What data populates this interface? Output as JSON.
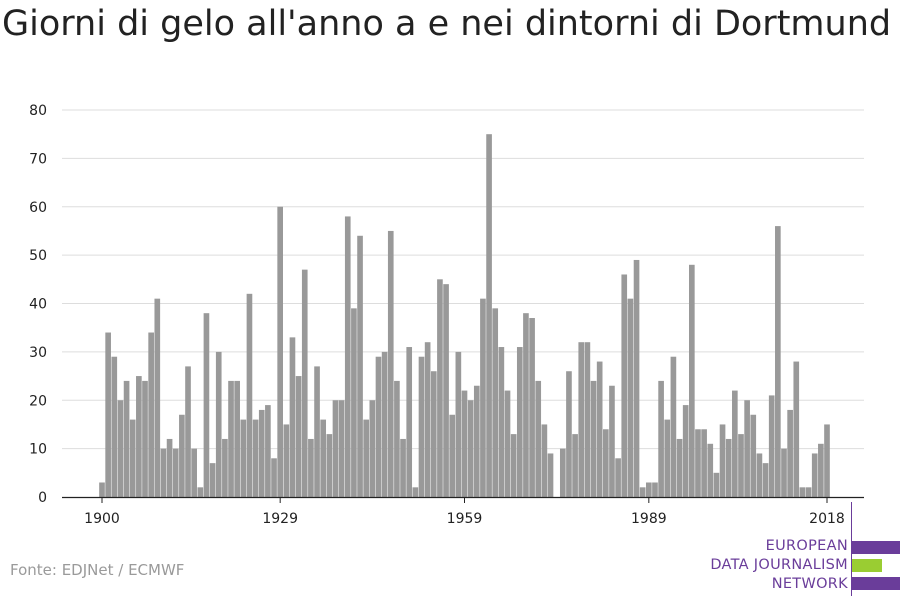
{
  "header": {
    "title": "Giorni di gelo all'anno a e nei dintorni di Dortmund"
  },
  "footer": {
    "source": "Fonte: EDJNet / ECMWF"
  },
  "logo": {
    "lines": [
      "EUROPEAN",
      "DATA JOURNALISM",
      "NETWORK"
    ],
    "colors": {
      "purple": "#6a3d9a",
      "green": "#9acd32"
    }
  },
  "chart_data": {
    "type": "bar",
    "title": "Giorni di gelo all'anno a e nei dintorni di Dortmund",
    "xlabel": "",
    "ylabel": "",
    "bar_color": "#999999",
    "grid": true,
    "ylim": [
      0,
      80
    ],
    "y_ticks": [
      0,
      10,
      20,
      30,
      40,
      50,
      60,
      70,
      80
    ],
    "x_ticks": [
      1900,
      1929,
      1959,
      1989,
      2018
    ],
    "x_range": [
      1900,
      2018
    ],
    "x": [
      1900,
      1901,
      1902,
      1903,
      1904,
      1905,
      1906,
      1907,
      1908,
      1909,
      1910,
      1911,
      1912,
      1913,
      1914,
      1915,
      1916,
      1917,
      1918,
      1919,
      1920,
      1921,
      1922,
      1923,
      1924,
      1925,
      1926,
      1927,
      1928,
      1929,
      1930,
      1931,
      1932,
      1933,
      1934,
      1935,
      1936,
      1937,
      1938,
      1939,
      1940,
      1941,
      1942,
      1943,
      1944,
      1945,
      1946,
      1947,
      1948,
      1949,
      1950,
      1951,
      1952,
      1953,
      1954,
      1955,
      1956,
      1957,
      1958,
      1959,
      1960,
      1961,
      1962,
      1963,
      1964,
      1965,
      1966,
      1967,
      1968,
      1969,
      1970,
      1971,
      1972,
      1973,
      1974,
      1975,
      1976,
      1977,
      1978,
      1979,
      1980,
      1981,
      1982,
      1983,
      1984,
      1985,
      1986,
      1987,
      1988,
      1989,
      1990,
      1991,
      1992,
      1993,
      1994,
      1995,
      1996,
      1997,
      1998,
      1999,
      2000,
      2001,
      2002,
      2003,
      2004,
      2005,
      2006,
      2007,
      2008,
      2009,
      2010,
      2011,
      2012,
      2013,
      2014,
      2015,
      2016,
      2017,
      2018
    ],
    "values": [
      3,
      34,
      29,
      20,
      24,
      16,
      25,
      24,
      34,
      41,
      10,
      12,
      10,
      17,
      27,
      10,
      2,
      38,
      7,
      30,
      12,
      24,
      24,
      16,
      42,
      16,
      18,
      19,
      8,
      60,
      15,
      33,
      25,
      47,
      12,
      27,
      16,
      13,
      20,
      20,
      58,
      39,
      54,
      16,
      20,
      29,
      30,
      55,
      24,
      12,
      31,
      2,
      29,
      32,
      26,
      45,
      44,
      17,
      30,
      22,
      20,
      23,
      41,
      75,
      39,
      31,
      22,
      13,
      31,
      38,
      37,
      24,
      15,
      9,
      0,
      10,
      26,
      13,
      32,
      32,
      24,
      28,
      14,
      23,
      8,
      46,
      41,
      49,
      2,
      3,
      3,
      24,
      16,
      29,
      12,
      19,
      48,
      14,
      14,
      11,
      5,
      15,
      12,
      22,
      13,
      20,
      17,
      9,
      7,
      21,
      56,
      10,
      18,
      28,
      2,
      2,
      9,
      11,
      15
    ]
  }
}
